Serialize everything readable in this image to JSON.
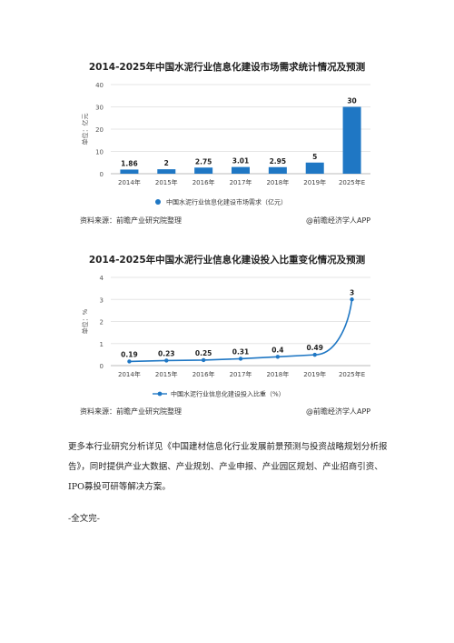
{
  "chart_data": [
    {
      "type": "bar",
      "title": "2014-2025年中国水泥行业信息化建设市场需求统计情况及预测",
      "ylabel": "单位：亿元",
      "categories": [
        "2014年",
        "2015年",
        "2016年",
        "2017年",
        "2018年",
        "2019年",
        "2025年E"
      ],
      "series": [
        {
          "name": "中国水泥行业信息化建设市场需求（亿元）",
          "values": [
            1.86,
            2,
            2.75,
            3.01,
            2.95,
            5,
            30
          ]
        }
      ],
      "data_labels": [
        "1.86",
        "2",
        "2.75",
        "3.01",
        "2.95",
        "5",
        "30"
      ],
      "ylim": [
        0,
        40
      ],
      "yticks": [
        "0",
        "10",
        "20",
        "30",
        "40"
      ],
      "grid": true,
      "legend": "bottom",
      "color": "#1f77c4"
    },
    {
      "type": "line",
      "title": "2014-2025年中国水泥行业信息化建设投入比重变化情况及预测",
      "ylabel": "单位：%",
      "categories": [
        "2014年",
        "2015年",
        "2016年",
        "2017年",
        "2018年",
        "2019年",
        "2025年E"
      ],
      "series": [
        {
          "name": "中国水泥行业信息化建设投入比重（%）",
          "values": [
            0.19,
            0.23,
            0.25,
            0.31,
            0.4,
            0.49,
            3
          ]
        }
      ],
      "data_labels": [
        "0.19",
        "0.23",
        "0.25",
        "0.31",
        "0.4",
        "0.49",
        "3"
      ],
      "ylim": [
        0,
        4
      ],
      "yticks": [
        "0",
        "1",
        "2",
        "3",
        "4"
      ],
      "grid": true,
      "legend": "bottom",
      "color": "#1f77c4"
    }
  ],
  "source_left": "资料来源：前瞻产业研究院整理",
  "source_right": "@前瞻经济学人APP",
  "body_paragraph": "更多本行业研究分析详见《中国建材信息化行业发展前景预测与投资战略规划分析报告》，同时提供产业大数据、产业规划、产业申报、产业园区规划、产业招商引资、IPO募投可研等解决方案。",
  "end_text": "-全文完-"
}
